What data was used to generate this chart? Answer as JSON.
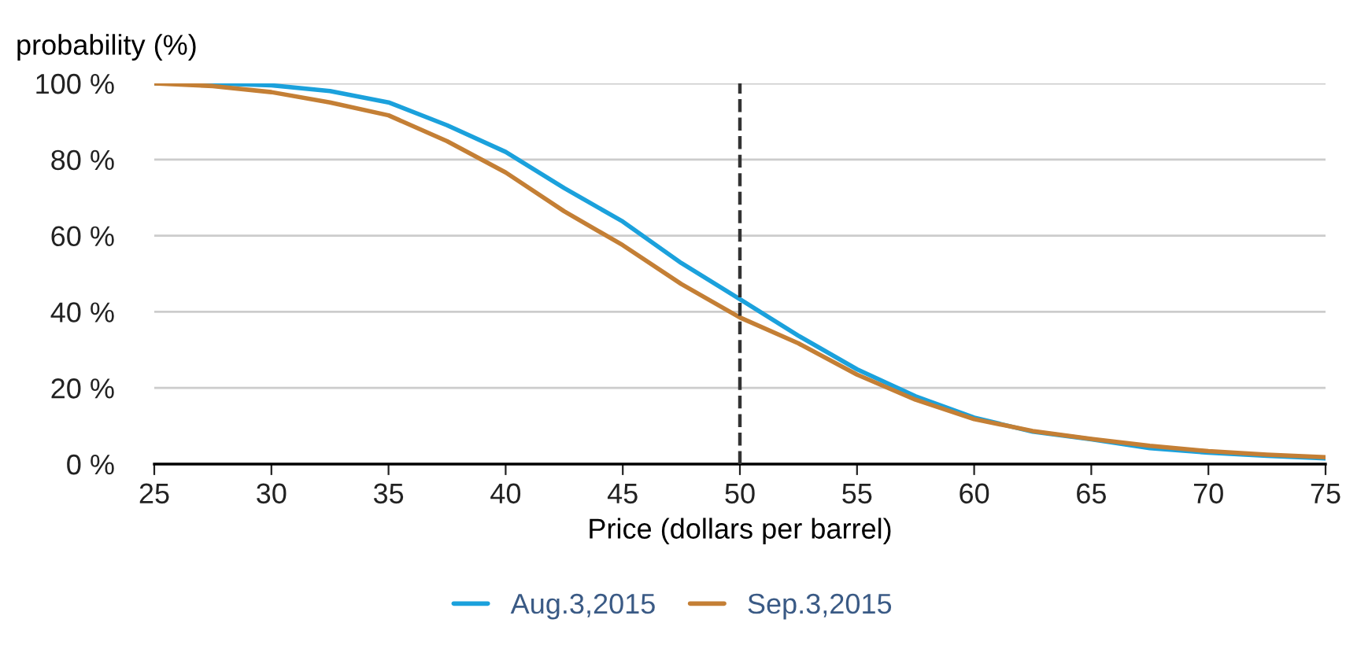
{
  "chart_data": {
    "type": "line",
    "xlabel": "Price (dollars per barrel)",
    "ylabel": "probability (%)",
    "x": [
      25,
      27.5,
      30,
      32.5,
      35,
      37.5,
      40,
      42.5,
      45,
      47.5,
      50,
      52.5,
      55,
      57.5,
      60,
      62.5,
      65,
      67.5,
      70,
      72.5,
      75
    ],
    "series": [
      {
        "name": "Aug.3,2015",
        "color": "#1ba1dc",
        "values": [
          100,
          100,
          99.5,
          98,
          95,
          89,
          82,
          72.5,
          63.7,
          52.8,
          43.3,
          33.7,
          24.9,
          17.8,
          12.2,
          8.5,
          6.5,
          4.2,
          3,
          2.2,
          1.5
        ]
      },
      {
        "name": "Sep.3,2015",
        "color": "#c47f35",
        "values": [
          100,
          99.3,
          97.7,
          95,
          91.6,
          84.8,
          76.6,
          66.4,
          57.5,
          47.3,
          38.5,
          31.7,
          23.5,
          16.9,
          11.8,
          8.7,
          6.6,
          4.8,
          3.4,
          2.5,
          1.8
        ]
      }
    ],
    "xlim": [
      25,
      75
    ],
    "xticks": [
      25,
      30,
      35,
      40,
      45,
      50,
      55,
      60,
      65,
      70,
      75
    ],
    "ylim": [
      0,
      100
    ],
    "yticks": [
      {
        "value": 0,
        "label": "0 %"
      },
      {
        "value": 20,
        "label": "20 %"
      },
      {
        "value": 40,
        "label": "40 %"
      },
      {
        "value": 60,
        "label": "60 %"
      },
      {
        "value": 80,
        "label": "80 %"
      },
      {
        "value": 100,
        "label": "100 %"
      }
    ],
    "ref_lines": [
      {
        "axis": "x",
        "value": 50,
        "color": "#333333",
        "line_style": "dashed"
      }
    ],
    "grid": "y",
    "legend": "bottom",
    "marker": "none",
    "line_style": "solid"
  }
}
